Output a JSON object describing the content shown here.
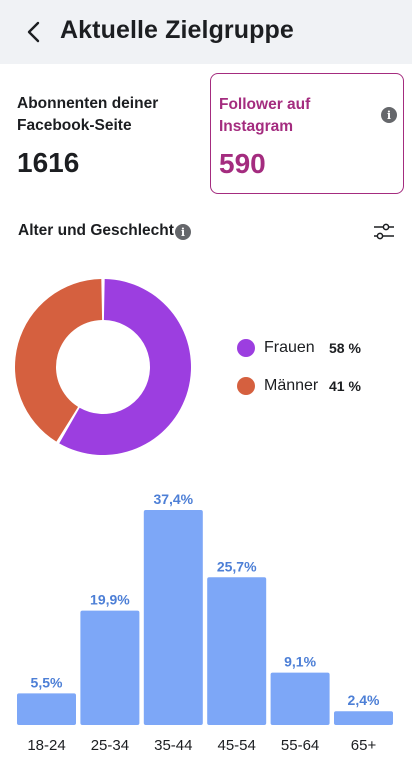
{
  "header": {
    "title": "Aktuelle Zielgruppe",
    "back_icon": "chevron-left-icon"
  },
  "cards": {
    "facebook": {
      "label_line1": "Abonnenten deiner",
      "label_line2": "Facebook-Seite",
      "value": "1616"
    },
    "instagram": {
      "label_line1": "Follower auf",
      "label_line2": "Instagram",
      "value": "590",
      "info_icon": "info-icon"
    }
  },
  "section": {
    "title": "Alter und Geschlecht",
    "info_icon": "info-icon",
    "filter_icon": "sliders-icon"
  },
  "gender": [
    {
      "label": "Frauen",
      "pct_text": "58 %",
      "value": 58,
      "color": "#9c3ee0"
    },
    {
      "label": "Männer",
      "pct_text": "41 %",
      "value": 41,
      "color": "#d5603f"
    }
  ],
  "chart_data": {
    "type": "bar",
    "categories": [
      "18-24",
      "25-34",
      "35-44",
      "45-54",
      "55-64",
      "65+"
    ],
    "values": [
      5.5,
      19.9,
      37.4,
      25.7,
      9.1,
      2.4
    ],
    "data_labels": [
      "5,5%",
      "19,9%",
      "37,4%",
      "25,7%",
      "9,1%",
      "2,4%"
    ],
    "bar_color": "#7da7f7",
    "label_color": "#4d7fd6",
    "ylim": [
      0,
      37.4
    ]
  }
}
